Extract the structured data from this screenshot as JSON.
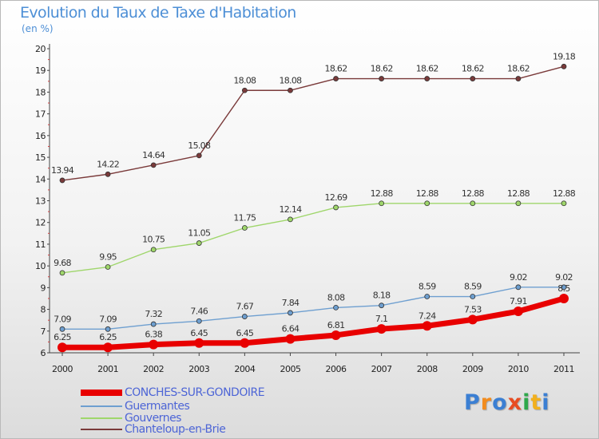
{
  "title": "Evolution du Taux de Taxe d'Habitation",
  "unit_label": "(en %)",
  "logo": {
    "text": "Proxiti",
    "colors": [
      "#3b7fd3",
      "#f28c1e",
      "#3b7fd3",
      "#e84c22",
      "#2ea84b",
      "#f2b01e",
      "#3b7fd3"
    ]
  },
  "chart_data": {
    "type": "line",
    "title": "Evolution du Taux de Taxe d'Habitation",
    "ylabel": "(en %)",
    "xlabel": "",
    "x": [
      "2000",
      "2001",
      "2002",
      "2003",
      "2004",
      "2005",
      "2006",
      "2007",
      "2008",
      "2009",
      "2010",
      "2011"
    ],
    "ylim": [
      6,
      20
    ],
    "yticks": [
      "6",
      "7",
      "8",
      "9",
      "10",
      "11",
      "12",
      "13",
      "14",
      "15",
      "16",
      "17",
      "18",
      "19",
      "20"
    ],
    "grid": false,
    "legend_position": "bottom-left",
    "series": [
      {
        "name": "CONCHES-SUR-GONDOIRE",
        "color": "#e80000",
        "values": [
          6.25,
          6.25,
          6.38,
          6.45,
          6.45,
          6.64,
          6.81,
          7.1,
          7.24,
          7.53,
          7.91,
          8.5
        ],
        "labels": [
          "6.25",
          "6.25",
          "6.38",
          "6.45",
          "6.45",
          "6.64",
          "6.81",
          "7.1",
          "7.24",
          "7.53",
          "7.91",
          "8.5"
        ]
      },
      {
        "name": "Guermantes",
        "color": "#6e9fd0",
        "values": [
          7.09,
          7.09,
          7.32,
          7.46,
          7.67,
          7.84,
          8.08,
          8.18,
          8.59,
          8.59,
          9.02,
          9.02
        ],
        "labels": [
          "7.09",
          "7.09",
          "7.32",
          "7.46",
          "7.67",
          "7.84",
          "8.08",
          "8.18",
          "8.59",
          "8.59",
          "9.02",
          "9.02"
        ]
      },
      {
        "name": "Gouvernes",
        "color": "#9fd66b",
        "values": [
          9.68,
          9.95,
          10.75,
          11.05,
          11.75,
          12.14,
          12.69,
          12.88,
          12.88,
          12.88,
          12.88,
          12.88
        ],
        "labels": [
          "9.68",
          "9.95",
          "10.75",
          "11.05",
          "11.75",
          "12.14",
          "12.69",
          "12.88",
          "12.88",
          "12.88",
          "12.88",
          "12.88"
        ]
      },
      {
        "name": "Chanteloup-en-Brie",
        "color": "#7a3a3a",
        "values": [
          13.94,
          14.22,
          14.64,
          15.08,
          18.08,
          18.08,
          18.62,
          18.62,
          18.62,
          18.62,
          18.62,
          19.18
        ],
        "labels": [
          "13.94",
          "14.22",
          "14.64",
          "15.08",
          "18.08",
          "18.08",
          "18.62",
          "18.62",
          "18.62",
          "18.62",
          "18.62",
          "19.18"
        ]
      }
    ]
  }
}
